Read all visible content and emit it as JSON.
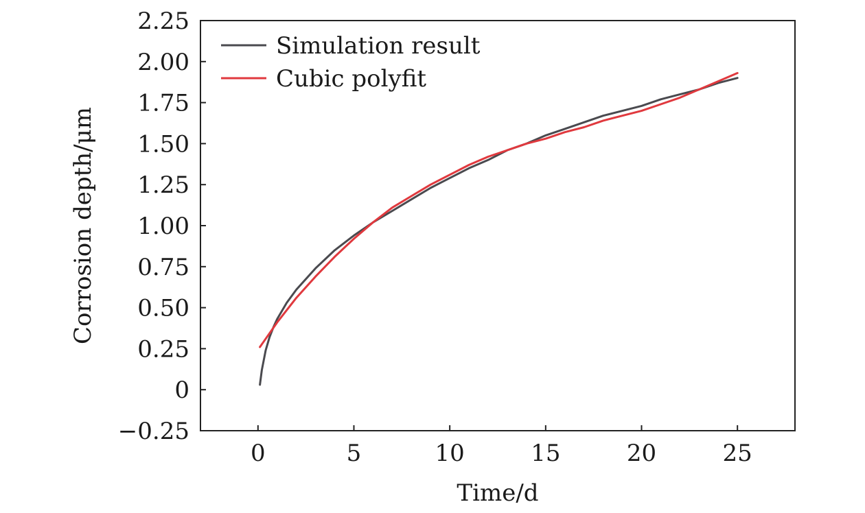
{
  "chart_data": {
    "type": "line",
    "title": "",
    "xlabel": "Time/d",
    "ylabel": "Corrosion depth/μm",
    "xlim": [
      -3,
      28
    ],
    "ylim": [
      -0.25,
      2.25
    ],
    "xticks": [
      0,
      5,
      10,
      15,
      20,
      25
    ],
    "xtick_labels": [
      "0",
      "5",
      "10",
      "15",
      "20",
      "25"
    ],
    "yticks": [
      -0.25,
      0,
      0.25,
      0.5,
      0.75,
      1.0,
      1.25,
      1.5,
      1.75,
      2.0,
      2.25
    ],
    "ytick_labels": [
      "−0.25",
      "0",
      "0.25",
      "0.50",
      "0.75",
      "1.00",
      "1.25",
      "1.50",
      "1.75",
      "2.00",
      "2.25"
    ],
    "grid": false,
    "legend_position": "top-left",
    "series": [
      {
        "name": "Simulation result",
        "color": "#4a4a4f",
        "x": [
          0.1,
          0.2,
          0.4,
          0.6,
          0.8,
          1,
          1.5,
          2,
          3,
          4,
          5,
          6,
          7,
          8,
          9,
          10,
          11,
          12,
          13,
          14,
          15,
          16,
          17,
          18,
          19,
          20,
          21,
          22,
          23,
          24,
          25
        ],
        "y": [
          0.03,
          0.12,
          0.24,
          0.32,
          0.38,
          0.43,
          0.53,
          0.61,
          0.74,
          0.85,
          0.94,
          1.02,
          1.09,
          1.16,
          1.23,
          1.29,
          1.35,
          1.4,
          1.46,
          1.5,
          1.55,
          1.59,
          1.63,
          1.67,
          1.7,
          1.73,
          1.77,
          1.8,
          1.83,
          1.87,
          1.9
        ]
      },
      {
        "name": "Cubic polyfit",
        "color": "#e0393e",
        "x": [
          0.1,
          1,
          2,
          3,
          4,
          5,
          6,
          7,
          8,
          9,
          10,
          11,
          12,
          13,
          14,
          15,
          16,
          17,
          18,
          19,
          20,
          21,
          22,
          23,
          24,
          25
        ],
        "y": [
          0.26,
          0.41,
          0.56,
          0.69,
          0.81,
          0.92,
          1.02,
          1.11,
          1.18,
          1.25,
          1.31,
          1.37,
          1.42,
          1.46,
          1.5,
          1.53,
          1.57,
          1.6,
          1.64,
          1.67,
          1.7,
          1.74,
          1.78,
          1.83,
          1.88,
          1.93
        ]
      }
    ]
  }
}
